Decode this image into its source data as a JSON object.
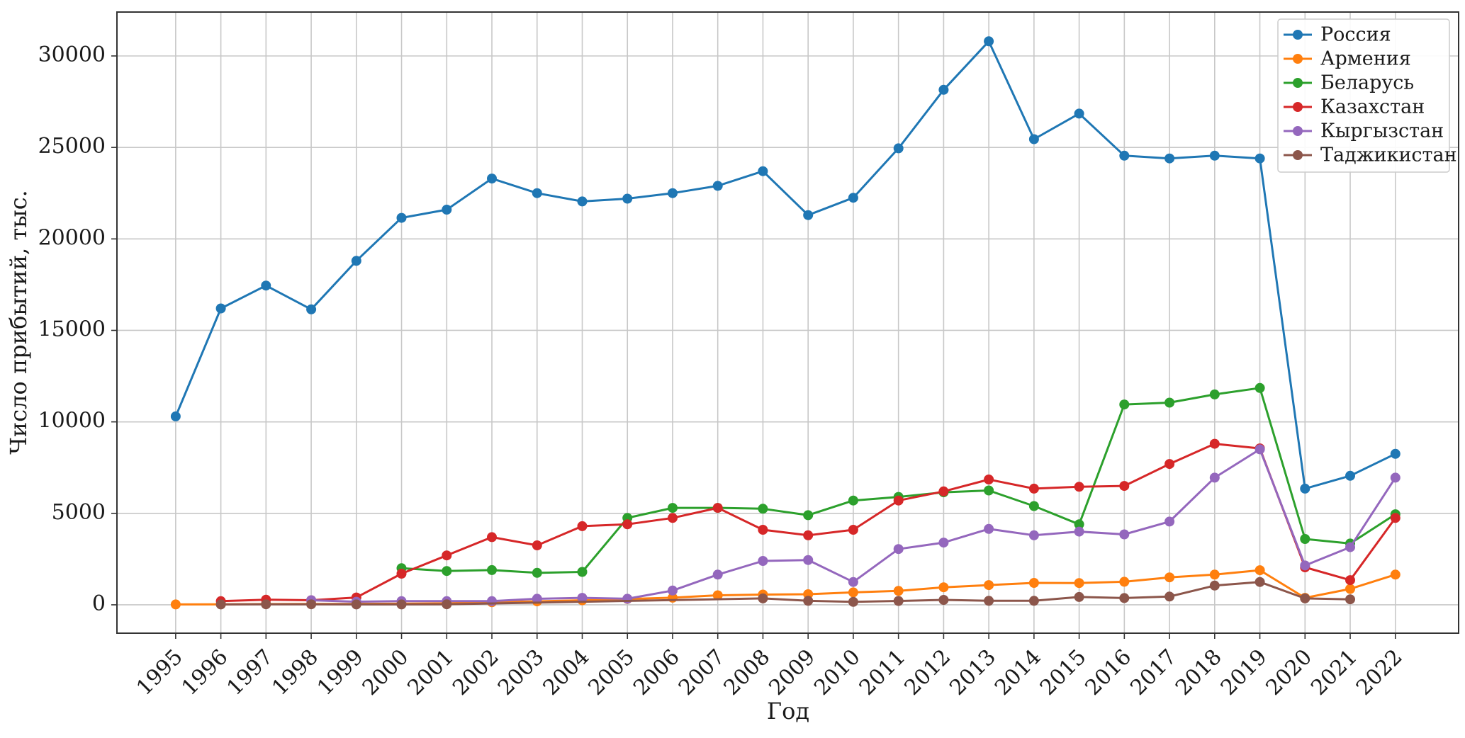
{
  "chart_data": {
    "type": "line",
    "xlabel": "Год",
    "ylabel": "Число прибытий, тыс.",
    "xlim": [
      1993.7,
      2023.4
    ],
    "ylim": [
      -1550,
      32400
    ],
    "x_ticks": [
      1995,
      1996,
      1997,
      1998,
      1999,
      2000,
      2001,
      2002,
      2003,
      2004,
      2005,
      2006,
      2007,
      2008,
      2009,
      2010,
      2011,
      2012,
      2013,
      2014,
      2015,
      2016,
      2017,
      2018,
      2019,
      2020,
      2021,
      2022
    ],
    "y_ticks": [
      0,
      5000,
      10000,
      15000,
      20000,
      25000,
      30000
    ],
    "grid": true,
    "legend_position": "top-right",
    "series": [
      {
        "name": "Россия",
        "color": "#1f77b4",
        "points": [
          [
            1995,
            10300
          ],
          [
            1996,
            16200
          ],
          [
            1997,
            17450
          ],
          [
            1998,
            16150
          ],
          [
            1999,
            18800
          ],
          [
            2000,
            21150
          ],
          [
            2001,
            21600
          ],
          [
            2002,
            23300
          ],
          [
            2003,
            22500
          ],
          [
            2004,
            22050
          ],
          [
            2005,
            22200
          ],
          [
            2006,
            22500
          ],
          [
            2007,
            22900
          ],
          [
            2008,
            23700
          ],
          [
            2009,
            21300
          ],
          [
            2010,
            22250
          ],
          [
            2011,
            24950
          ],
          [
            2012,
            28150
          ],
          [
            2013,
            30800
          ],
          [
            2014,
            25450
          ],
          [
            2015,
            26850
          ],
          [
            2016,
            24550
          ],
          [
            2017,
            24400
          ],
          [
            2018,
            24550
          ],
          [
            2019,
            24400
          ],
          [
            2020,
            6350
          ],
          [
            2021,
            7050
          ],
          [
            2022,
            8250
          ]
        ]
      },
      {
        "name": "Армения",
        "color": "#ff7f0e",
        "points": [
          [
            1995,
            20
          ],
          [
            1996,
            30
          ],
          [
            1997,
            40
          ],
          [
            1998,
            50
          ],
          [
            1999,
            50
          ],
          [
            2000,
            60
          ],
          [
            2001,
            80
          ],
          [
            2002,
            140
          ],
          [
            2003,
            190
          ],
          [
            2004,
            250
          ],
          [
            2005,
            320
          ],
          [
            2006,
            390
          ],
          [
            2007,
            520
          ],
          [
            2008,
            560
          ],
          [
            2009,
            580
          ],
          [
            2010,
            680
          ],
          [
            2011,
            760
          ],
          [
            2012,
            960
          ],
          [
            2013,
            1080
          ],
          [
            2014,
            1200
          ],
          [
            2015,
            1190
          ],
          [
            2016,
            1260
          ],
          [
            2017,
            1500
          ],
          [
            2018,
            1650
          ],
          [
            2019,
            1890
          ],
          [
            2020,
            380
          ],
          [
            2021,
            870
          ],
          [
            2022,
            1650
          ]
        ]
      },
      {
        "name": "Беларусь",
        "color": "#2ca02c",
        "points": [
          [
            2000,
            2000
          ],
          [
            2001,
            1850
          ],
          [
            2002,
            1900
          ],
          [
            2003,
            1750
          ],
          [
            2004,
            1800
          ],
          [
            2005,
            4750
          ],
          [
            2006,
            5300
          ],
          [
            2007,
            5300
          ],
          [
            2008,
            5250
          ],
          [
            2009,
            4900
          ],
          [
            2010,
            5700
          ],
          [
            2011,
            5900
          ],
          [
            2012,
            6150
          ],
          [
            2013,
            6250
          ],
          [
            2014,
            5400
          ],
          [
            2015,
            4400
          ],
          [
            2016,
            10950
          ],
          [
            2017,
            11050
          ],
          [
            2018,
            11500
          ],
          [
            2019,
            11850
          ],
          [
            2020,
            3600
          ],
          [
            2021,
            3350
          ],
          [
            2022,
            4950
          ]
        ]
      },
      {
        "name": "Казахстан",
        "color": "#d62728",
        "points": [
          [
            1996,
            200
          ],
          [
            1997,
            280
          ],
          [
            1998,
            250
          ],
          [
            1999,
            400
          ],
          [
            2000,
            1700
          ],
          [
            2001,
            2700
          ],
          [
            2002,
            3700
          ],
          [
            2003,
            3250
          ],
          [
            2004,
            4300
          ],
          [
            2005,
            4400
          ],
          [
            2006,
            4750
          ],
          [
            2007,
            5300
          ],
          [
            2008,
            4100
          ],
          [
            2009,
            3800
          ],
          [
            2010,
            4100
          ],
          [
            2011,
            5700
          ],
          [
            2012,
            6200
          ],
          [
            2013,
            6850
          ],
          [
            2014,
            6350
          ],
          [
            2015,
            6450
          ],
          [
            2016,
            6500
          ],
          [
            2017,
            7700
          ],
          [
            2018,
            8800
          ],
          [
            2019,
            8550
          ],
          [
            2020,
            2050
          ],
          [
            2021,
            1350
          ],
          [
            2022,
            4750
          ]
        ]
      },
      {
        "name": "Кыргызстан",
        "color": "#9467bd",
        "points": [
          [
            1998,
            250
          ],
          [
            1999,
            170
          ],
          [
            2000,
            200
          ],
          [
            2001,
            200
          ],
          [
            2002,
            200
          ],
          [
            2003,
            330
          ],
          [
            2004,
            380
          ],
          [
            2005,
            330
          ],
          [
            2006,
            780
          ],
          [
            2007,
            1650
          ],
          [
            2008,
            2400
          ],
          [
            2009,
            2450
          ],
          [
            2010,
            1250
          ],
          [
            2011,
            3050
          ],
          [
            2012,
            3400
          ],
          [
            2013,
            4150
          ],
          [
            2014,
            3800
          ],
          [
            2015,
            4000
          ],
          [
            2016,
            3850
          ],
          [
            2017,
            4550
          ],
          [
            2018,
            6950
          ],
          [
            2019,
            8500
          ],
          [
            2020,
            2150
          ],
          [
            2021,
            3150
          ],
          [
            2022,
            6950
          ]
        ]
      },
      {
        "name": "Таджикистан",
        "color": "#8c564b",
        "points": [
          [
            1996,
            20
          ],
          [
            1997,
            30
          ],
          [
            1998,
            30
          ],
          [
            1999,
            20
          ],
          [
            2000,
            20
          ],
          [
            2001,
            30
          ],
          [
            2008,
            350
          ],
          [
            2009,
            220
          ],
          [
            2010,
            160
          ],
          [
            2011,
            210
          ],
          [
            2012,
            270
          ],
          [
            2013,
            220
          ],
          [
            2014,
            220
          ],
          [
            2015,
            430
          ],
          [
            2016,
            370
          ],
          [
            2017,
            450
          ],
          [
            2018,
            1050
          ],
          [
            2019,
            1250
          ],
          [
            2020,
            350
          ],
          [
            2021,
            300
          ]
        ]
      }
    ]
  }
}
